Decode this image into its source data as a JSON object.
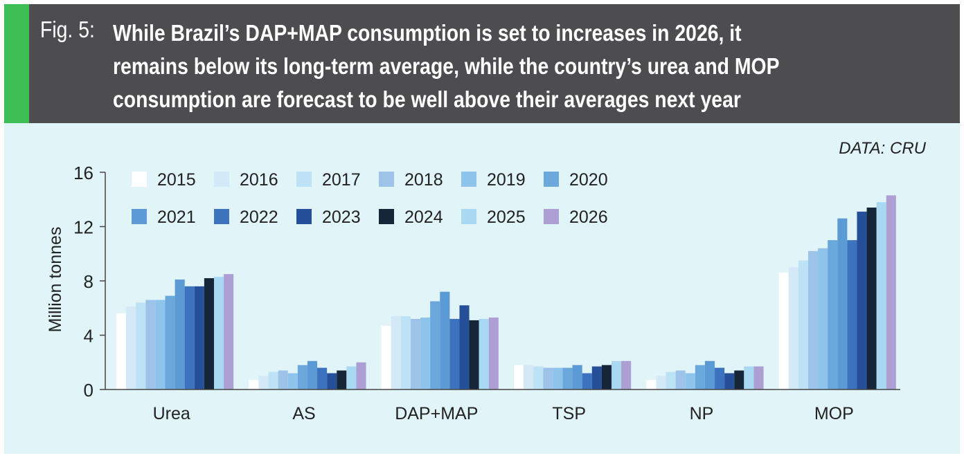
{
  "header": {
    "fig_label": "Fig. 5:",
    "title_lines": [
      "While Brazil’s DAP+MAP consumption is set to increases in 2026, it",
      "remains below its long-term average, while the country’s urea and MOP",
      "consumption are forecast to be well above their averages next year"
    ]
  },
  "source": "DATA: CRU",
  "colors": {
    "accent": "#3dbf55",
    "header_bg": "#4d4d4f",
    "panel_bg": "#e1f4f7"
  },
  "chart_data": {
    "type": "bar",
    "ylabel": "Million tonnes",
    "xlabel": "",
    "ylim": [
      0,
      16
    ],
    "yticks": [
      0,
      4,
      8,
      12,
      16
    ],
    "grid": false,
    "legend_placement": "top-left",
    "categories": [
      "Urea",
      "AS",
      "DAP+MAP",
      "TSP",
      "NP",
      "MOP"
    ],
    "series": [
      {
        "name": "2015",
        "color": "#ffffff",
        "values": [
          5.6,
          0.7,
          4.7,
          1.8,
          0.7,
          8.6
        ]
      },
      {
        "name": "2016",
        "color": "#d3e9f7",
        "values": [
          6.1,
          1.0,
          5.4,
          1.8,
          1.0,
          9.0
        ]
      },
      {
        "name": "2017",
        "color": "#bde2f6",
        "values": [
          6.4,
          1.3,
          5.4,
          1.7,
          1.3,
          9.5
        ]
      },
      {
        "name": "2018",
        "color": "#9dc4e8",
        "values": [
          6.6,
          1.4,
          5.2,
          1.6,
          1.4,
          10.2
        ]
      },
      {
        "name": "2019",
        "color": "#8ec4ec",
        "values": [
          6.6,
          1.2,
          5.3,
          1.6,
          1.2,
          10.4
        ]
      },
      {
        "name": "2020",
        "color": "#6aa8dc",
        "values": [
          6.9,
          1.8,
          6.5,
          1.6,
          1.8,
          11.0
        ]
      },
      {
        "name": "2021",
        "color": "#5b9ad4",
        "values": [
          8.1,
          2.1,
          7.2,
          1.8,
          2.1,
          12.6
        ]
      },
      {
        "name": "2022",
        "color": "#3d72bf",
        "values": [
          7.6,
          1.6,
          5.2,
          1.2,
          1.6,
          11.0
        ]
      },
      {
        "name": "2023",
        "color": "#254f99",
        "values": [
          7.6,
          1.2,
          6.2,
          1.7,
          1.2,
          13.1
        ]
      },
      {
        "name": "2024",
        "color": "#152638",
        "values": [
          8.2,
          1.4,
          5.1,
          1.8,
          1.4,
          13.4
        ]
      },
      {
        "name": "2025",
        "color": "#a8d8f2",
        "values": [
          8.3,
          1.7,
          5.2,
          2.1,
          1.7,
          13.8
        ]
      },
      {
        "name": "2026",
        "color": "#ad9fd3",
        "values": [
          8.5,
          2.0,
          5.3,
          2.1,
          1.7,
          14.3
        ]
      }
    ]
  }
}
